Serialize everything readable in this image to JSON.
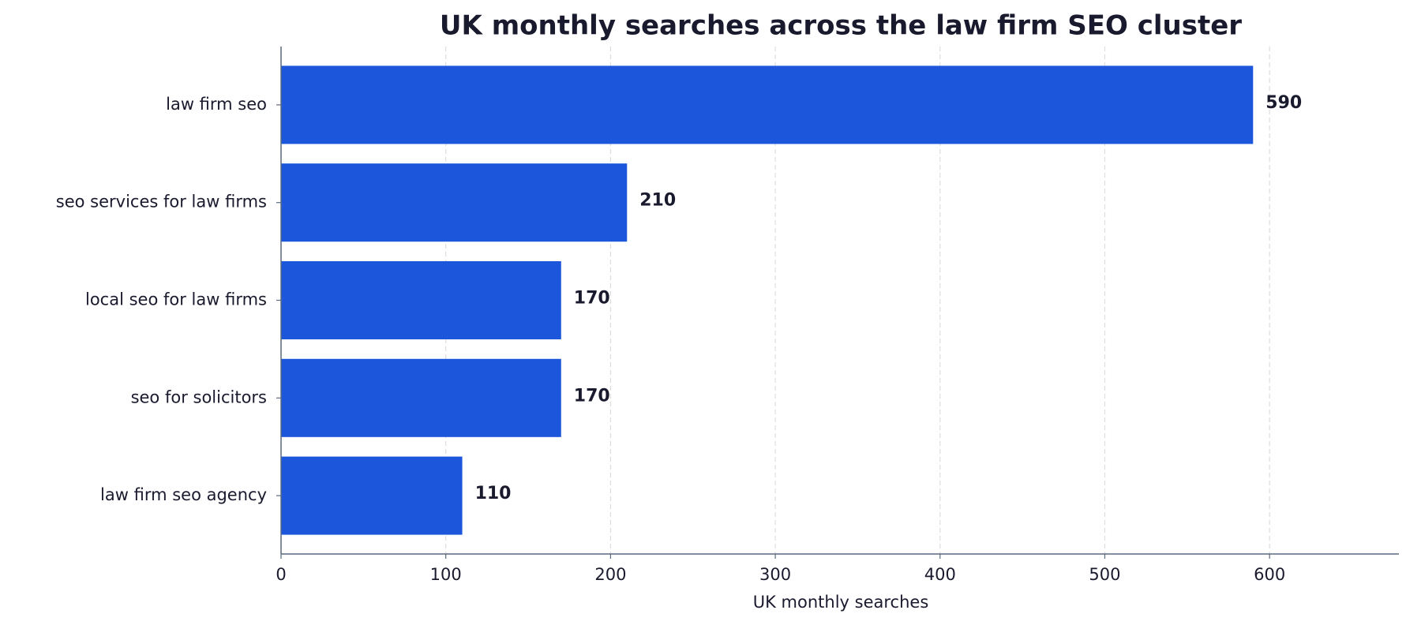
{
  "chart_data": {
    "type": "barh",
    "title": "UK monthly searches across the law firm SEO cluster",
    "x_label": "UK monthly searches",
    "categories": [
      "law firm seo",
      "seo services for law firms",
      "local seo for law firms",
      "seo for solicitors",
      "law firm seo agency"
    ],
    "values": [
      590,
      210,
      170,
      170,
      110
    ],
    "color": "#1c56db",
    "xlim": [
      0,
      678.5
    ],
    "xticks": [
      0,
      100,
      200,
      300,
      400,
      500,
      600
    ],
    "grid": true
  }
}
